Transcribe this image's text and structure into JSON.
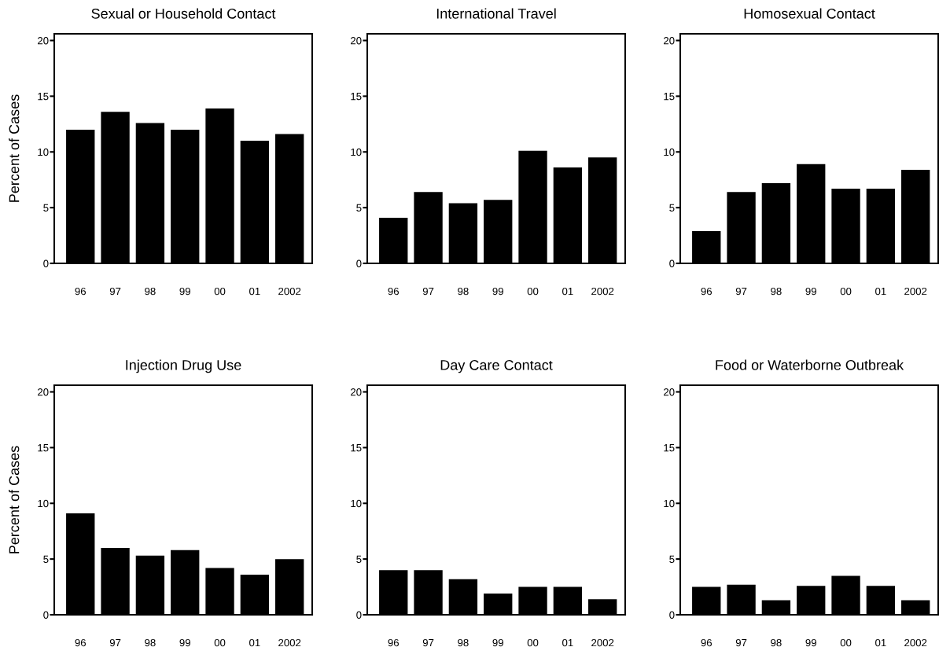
{
  "chart_data": [
    {
      "type": "bar",
      "title": "Sexual or Household Contact",
      "ylabel": "Percent of Cases",
      "categories": [
        "96",
        "97",
        "98",
        "99",
        "00",
        "01",
        "2002"
      ],
      "values": [
        12.0,
        13.6,
        12.6,
        12.0,
        13.9,
        11.0,
        11.6
      ],
      "color": "#000000",
      "ylim": [
        0,
        20.6
      ],
      "yticks": [
        0,
        5,
        10,
        15,
        20
      ],
      "grid": false
    },
    {
      "type": "bar",
      "title": "International Travel",
      "categories": [
        "96",
        "97",
        "98",
        "99",
        "00",
        "01",
        "2002"
      ],
      "values": [
        4.1,
        6.4,
        5.4,
        5.7,
        10.1,
        8.6,
        9.5
      ],
      "color": "#000000",
      "ylim": [
        0,
        20.6
      ],
      "yticks": [
        0,
        5,
        10,
        15,
        20
      ],
      "grid": false
    },
    {
      "type": "bar",
      "title": "Homosexual Contact",
      "categories": [
        "96",
        "97",
        "98",
        "99",
        "00",
        "01",
        "2002"
      ],
      "values": [
        2.9,
        6.4,
        7.2,
        8.9,
        6.7,
        6.7,
        8.4
      ],
      "color": "#000000",
      "ylim": [
        0,
        20.6
      ],
      "yticks": [
        0,
        5,
        10,
        15,
        20
      ],
      "grid": false
    },
    {
      "type": "bar",
      "title": "Injection Drug Use",
      "ylabel": "Percent of Cases",
      "categories": [
        "96",
        "97",
        "98",
        "99",
        "00",
        "01",
        "2002"
      ],
      "values": [
        9.1,
        6.0,
        5.3,
        5.8,
        4.2,
        3.6,
        5.0
      ],
      "color": "#000000",
      "ylim": [
        0,
        20.6
      ],
      "yticks": [
        0,
        5,
        10,
        15,
        20
      ],
      "grid": false
    },
    {
      "type": "bar",
      "title": "Day Care Contact",
      "categories": [
        "96",
        "97",
        "98",
        "99",
        "00",
        "01",
        "2002"
      ],
      "values": [
        4.0,
        4.0,
        3.2,
        1.9,
        2.5,
        2.5,
        1.4
      ],
      "color": "#000000",
      "ylim": [
        0,
        20.6
      ],
      "yticks": [
        0,
        5,
        10,
        15,
        20
      ],
      "grid": false
    },
    {
      "type": "bar",
      "title": "Food or Waterborne Outbreak",
      "categories": [
        "96",
        "97",
        "98",
        "99",
        "00",
        "01",
        "2002"
      ],
      "values": [
        2.5,
        2.7,
        1.3,
        2.6,
        3.5,
        2.6,
        1.3
      ],
      "color": "#000000",
      "ylim": [
        0,
        20.6
      ],
      "yticks": [
        0,
        5,
        10,
        15,
        20
      ],
      "grid": false
    }
  ]
}
